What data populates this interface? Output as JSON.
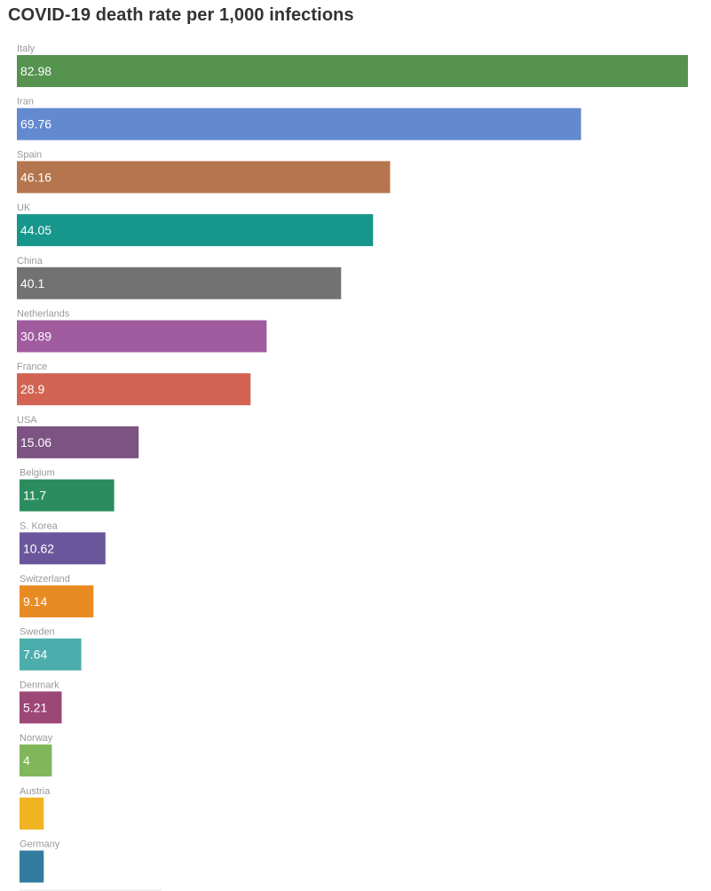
{
  "chart_data": {
    "type": "bar",
    "orientation": "horizontal",
    "title": "COVID-19 death rate per 1,000 infections",
    "xlabel": "",
    "ylabel": "",
    "xlim": [
      0,
      82.98
    ],
    "grid": false,
    "legend": "none",
    "categories": [
      "Italy",
      "Iran",
      "Spain",
      "UK",
      "China",
      "Netherlands",
      "France",
      "USA",
      "Belgium",
      "S. Korea",
      "Switzerland",
      "Sweden",
      "Denmark",
      "Norway",
      "Austria",
      "Germany"
    ],
    "values": [
      82.98,
      69.76,
      46.16,
      44.05,
      40.1,
      30.89,
      28.9,
      15.06,
      11.7,
      10.62,
      9.14,
      7.64,
      5.21,
      4,
      3,
      3
    ],
    "data_labels": [
      "82.98",
      "69.76",
      "46.16",
      "44.05",
      "40.1",
      "30.89",
      "28.9",
      "15.06",
      "11.7",
      "10.62",
      "9.14",
      "7.64",
      "5.21",
      "4",
      "",
      ""
    ],
    "colors": [
      "#55934f",
      "#6389d0",
      "#b5754e",
      "#17978b",
      "#727272",
      "#a15ca0",
      "#d26352",
      "#7c5382",
      "#2b8d5f",
      "#6a579b",
      "#e98b23",
      "#4caeac",
      "#9d4777",
      "#81b75a",
      "#f0b422",
      "#347ba0"
    ]
  }
}
